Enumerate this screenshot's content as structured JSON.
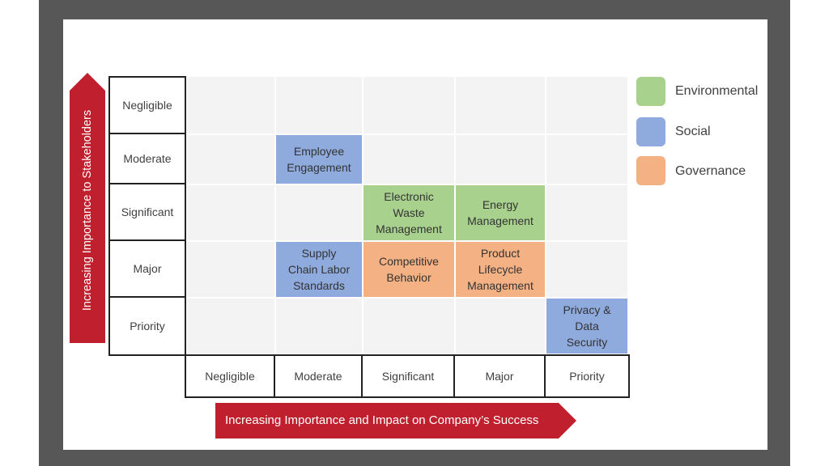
{
  "y_axis": {
    "title": "Increasing Importance to Stakeholders",
    "levels": [
      "Negligible",
      "Moderate",
      "Significant",
      "Major",
      "Priority"
    ]
  },
  "x_axis": {
    "title": "Increasing Importance and Impact on Company’s Success",
    "levels": [
      "Negligible",
      "Moderate",
      "Significant",
      "Major",
      "Priority"
    ]
  },
  "legend": [
    {
      "label": "Environmental",
      "color": "#a9d18e"
    },
    {
      "label": "Social",
      "color": "#8faadc"
    },
    {
      "label": "Governance",
      "color": "#f4b183"
    }
  ],
  "issues": [
    {
      "label": "Employee\nEngagement",
      "category": "Social",
      "stakeholder_importance": "Moderate",
      "company_impact": "Moderate"
    },
    {
      "label": "Electronic\nWaste\nManagement",
      "category": "Environmental",
      "stakeholder_importance": "Significant",
      "company_impact": "Significant"
    },
    {
      "label": "Energy\nManagement",
      "category": "Environmental",
      "stakeholder_importance": "Significant",
      "company_impact": "Major"
    },
    {
      "label": "Supply\nChain Labor\nStandards",
      "category": "Social",
      "stakeholder_importance": "Major",
      "company_impact": "Moderate"
    },
    {
      "label": "Competitive\nBehavior",
      "category": "Governance",
      "stakeholder_importance": "Major",
      "company_impact": "Significant"
    },
    {
      "label": "Product\nLifecycle\nManagement",
      "category": "Governance",
      "stakeholder_importance": "Major",
      "company_impact": "Major"
    },
    {
      "label": "Privacy &\nData\nSecurity",
      "category": "Social",
      "stakeholder_importance": "Priority",
      "company_impact": "Priority"
    }
  ]
}
